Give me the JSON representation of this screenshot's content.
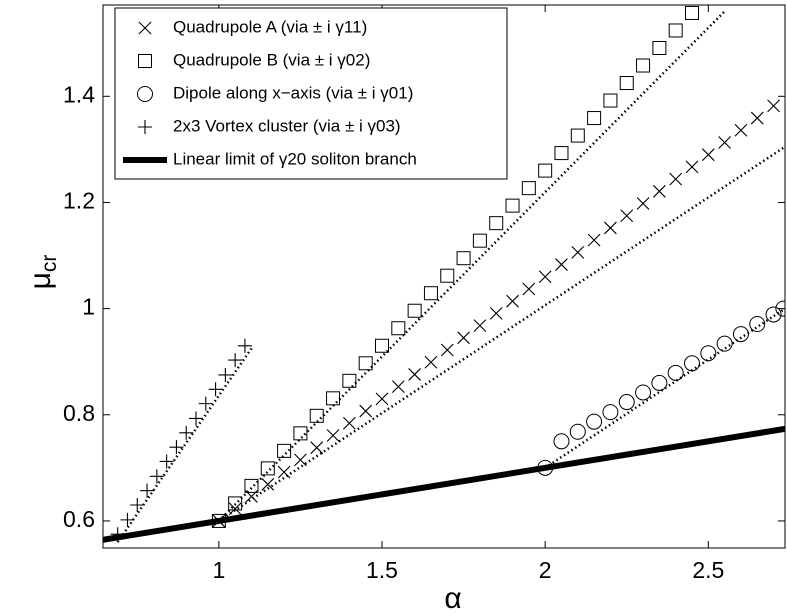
{
  "chart_data": {
    "type": "scatter",
    "xlabel": "α",
    "ylabel": "μ",
    "ylabel_subscript": "cr",
    "xlim": [
      0.645,
      2.735
    ],
    "ylim": [
      0.549,
      1.572
    ],
    "xticks": [
      1,
      1.5,
      2,
      2.5
    ],
    "yticks": [
      0.6,
      0.8,
      1,
      1.2,
      1.4
    ],
    "legend": "upper left",
    "grid": false,
    "series": [
      {
        "name": "Quadrupole A (via ± i γ11)",
        "marker": "x",
        "color": "#000000",
        "x": [
          1.0,
          1.05,
          1.1,
          1.15,
          1.2,
          1.25,
          1.3,
          1.35,
          1.4,
          1.45,
          1.5,
          1.55,
          1.6,
          1.65,
          1.7,
          1.75,
          1.8,
          1.85,
          1.9,
          1.95,
          2.0,
          2.05,
          2.1,
          2.15,
          2.2,
          2.25,
          2.3,
          2.35,
          2.4,
          2.45,
          2.5,
          2.55,
          2.6,
          2.65,
          2.7
        ],
        "values": [
          0.6,
          0.623,
          0.646,
          0.669,
          0.692,
          0.715,
          0.738,
          0.761,
          0.784,
          0.807,
          0.83,
          0.853,
          0.876,
          0.899,
          0.922,
          0.945,
          0.968,
          0.991,
          1.014,
          1.037,
          1.06,
          1.083,
          1.106,
          1.129,
          1.152,
          1.175,
          1.198,
          1.221,
          1.244,
          1.267,
          1.29,
          1.313,
          1.336,
          1.359,
          1.382
        ]
      },
      {
        "name": "Quadrupole B (via ± i γ02)",
        "marker": "square",
        "color": "#000000",
        "x": [
          1.0,
          1.05,
          1.1,
          1.15,
          1.2,
          1.25,
          1.3,
          1.35,
          1.4,
          1.45,
          1.5,
          1.55,
          1.6,
          1.65,
          1.7,
          1.75,
          1.8,
          1.85,
          1.9,
          1.95,
          2.0,
          2.05,
          2.1,
          2.15,
          2.2,
          2.25,
          2.3,
          2.35,
          2.4,
          2.45
        ],
        "values": [
          0.6,
          0.633,
          0.666,
          0.699,
          0.732,
          0.765,
          0.798,
          0.831,
          0.864,
          0.897,
          0.93,
          0.963,
          0.996,
          1.029,
          1.062,
          1.095,
          1.128,
          1.161,
          1.194,
          1.227,
          1.26,
          1.293,
          1.326,
          1.359,
          1.392,
          1.425,
          1.458,
          1.491,
          1.524,
          1.557
        ]
      },
      {
        "name": "Dipole along x−axis (via ± i γ01)",
        "marker": "circle",
        "color": "#000000",
        "x": [
          2.0,
          2.05,
          2.1,
          2.15,
          2.2,
          2.25,
          2.3,
          2.35,
          2.4,
          2.45,
          2.5,
          2.55,
          2.6,
          2.65,
          2.7,
          2.73
        ],
        "values": [
          0.7,
          0.75,
          0.768,
          0.787,
          0.805,
          0.824,
          0.842,
          0.86,
          0.879,
          0.897,
          0.916,
          0.934,
          0.952,
          0.971,
          0.989,
          1.0
        ]
      },
      {
        "name": "2x3 Vortex cluster (via ± i γ03)",
        "marker": "plus",
        "color": "#000000",
        "x": [
          0.69,
          0.72,
          0.75,
          0.78,
          0.81,
          0.84,
          0.87,
          0.9,
          0.93,
          0.96,
          0.99,
          1.02,
          1.05,
          1.08
        ],
        "values": [
          0.575,
          0.602,
          0.63,
          0.657,
          0.684,
          0.712,
          0.739,
          0.766,
          0.793,
          0.821,
          0.848,
          0.875,
          0.903,
          0.93
        ]
      },
      {
        "name": "Linear limit of γ20 soliton branch",
        "marker": "line",
        "color": "#000000",
        "x": [
          0.645,
          2.735
        ],
        "values": [
          0.5645,
          0.7735
        ]
      }
    ],
    "lines": [
      {
        "style": "dotted",
        "color": "#000000",
        "x": [
          0.69,
          1.1
        ],
        "values": [
          0.56,
          0.925
        ]
      },
      {
        "style": "dotted",
        "color": "#000000",
        "x": [
          1.0,
          2.735
        ],
        "values": [
          0.6,
          1.305
        ]
      },
      {
        "style": "dotted",
        "color": "#000000",
        "x": [
          1.0,
          2.55
        ],
        "values": [
          0.6,
          1.56
        ]
      },
      {
        "style": "dotted",
        "color": "#000000",
        "x": [
          2.0,
          2.735
        ],
        "values": [
          0.7,
          1.0
        ]
      }
    ]
  }
}
